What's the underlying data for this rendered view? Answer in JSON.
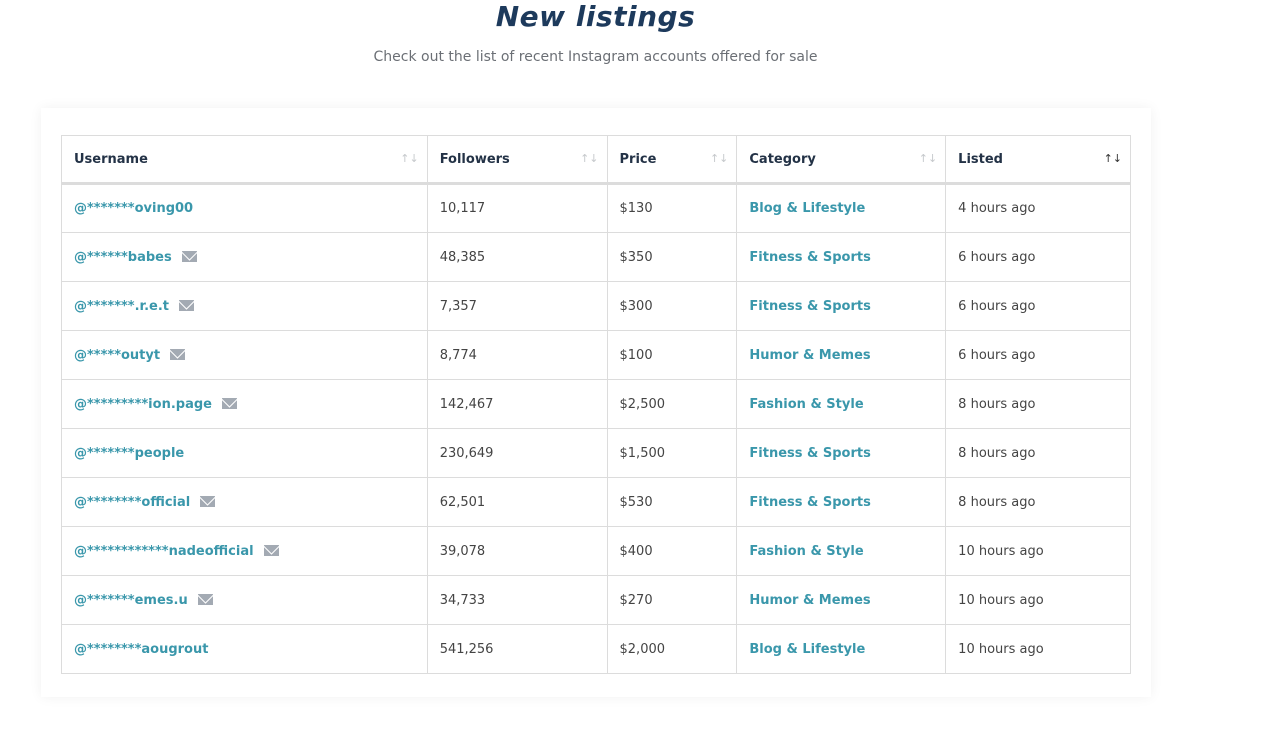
{
  "header": {
    "title": "New listings",
    "subtitle": "Check out the list of recent Instagram accounts offered for sale"
  },
  "table": {
    "columns": [
      "Username",
      "Followers",
      "Price",
      "Category",
      "Listed"
    ],
    "sorted_column": "Listed",
    "rows": [
      {
        "username": "@*******oving00",
        "mail": false,
        "followers": "10,117",
        "price": "$130",
        "category": "Blog & Lifestyle",
        "listed": "4 hours ago"
      },
      {
        "username": "@******babes",
        "mail": true,
        "followers": "48,385",
        "price": "$350",
        "category": "Fitness & Sports",
        "listed": "6 hours ago"
      },
      {
        "username": "@*******.r.e.t",
        "mail": true,
        "followers": "7,357",
        "price": "$300",
        "category": "Fitness & Sports",
        "listed": "6 hours ago"
      },
      {
        "username": "@*****outyt",
        "mail": true,
        "followers": "8,774",
        "price": "$100",
        "category": "Humor & Memes",
        "listed": "6 hours ago"
      },
      {
        "username": "@*********ion.page",
        "mail": true,
        "followers": "142,467",
        "price": "$2,500",
        "category": "Fashion & Style",
        "listed": "8 hours ago"
      },
      {
        "username": "@*******people",
        "mail": false,
        "followers": "230,649",
        "price": "$1,500",
        "category": "Fitness & Sports",
        "listed": "8 hours ago"
      },
      {
        "username": "@********official",
        "mail": true,
        "followers": "62,501",
        "price": "$530",
        "category": "Fitness & Sports",
        "listed": "8 hours ago"
      },
      {
        "username": "@************nadeofficial",
        "mail": true,
        "followers": "39,078",
        "price": "$400",
        "category": "Fashion & Style",
        "listed": "10 hours ago"
      },
      {
        "username": "@*******emes.u",
        "mail": true,
        "followers": "34,733",
        "price": "$270",
        "category": "Humor & Memes",
        "listed": "10 hours ago"
      },
      {
        "username": "@********aougrout",
        "mail": false,
        "followers": "541,256",
        "price": "$2,000",
        "category": "Blog & Lifestyle",
        "listed": "10 hours ago"
      }
    ]
  },
  "colors": {
    "title": "#1d3a5c",
    "link": "#3a97ab",
    "mail_icon": "#a3aab3"
  }
}
